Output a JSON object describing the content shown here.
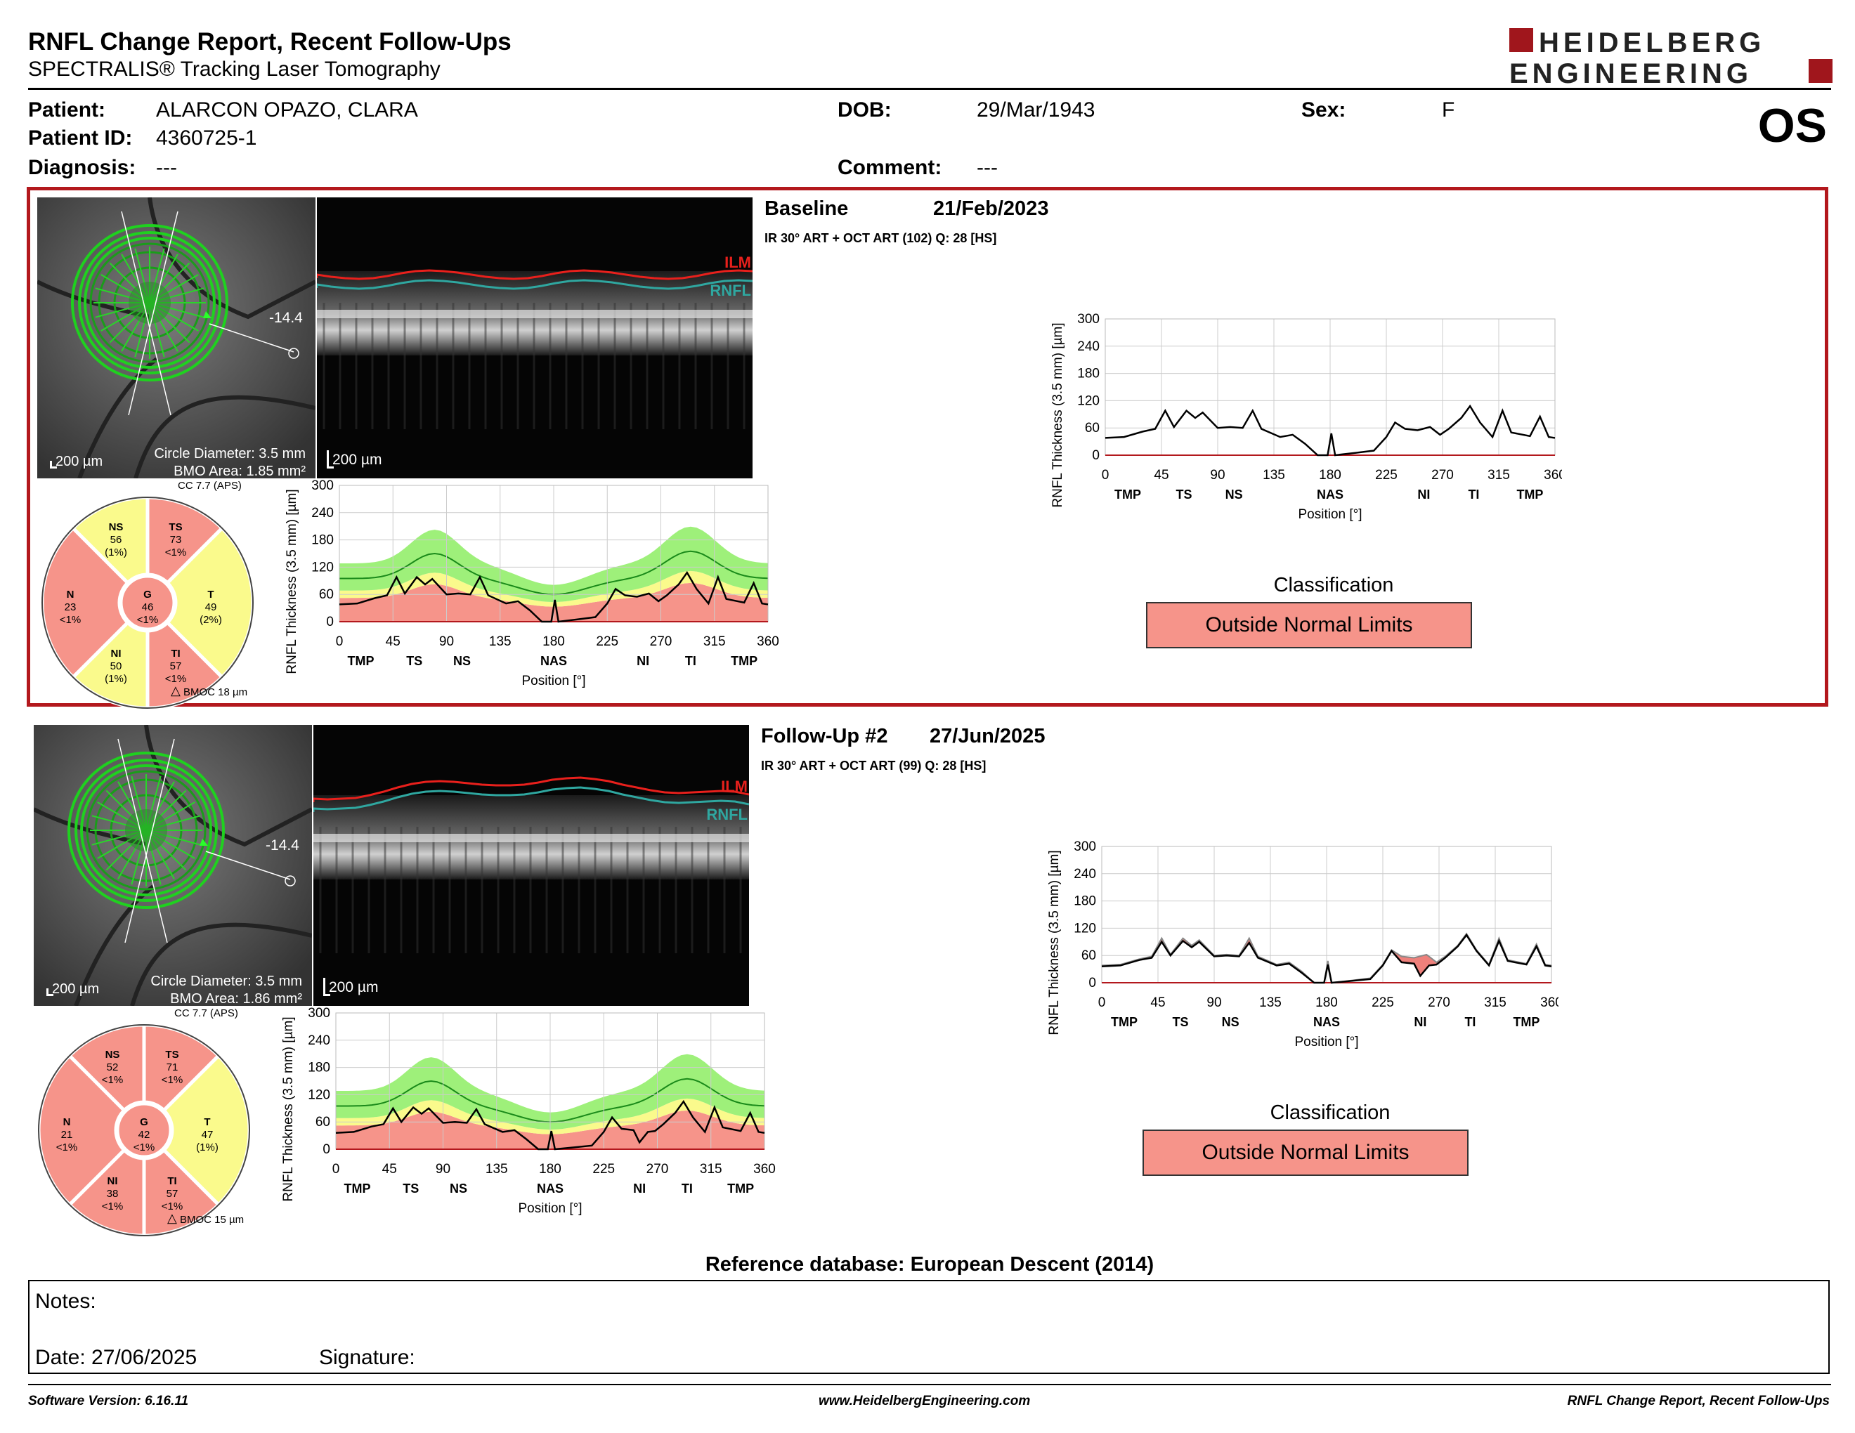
{
  "header": {
    "title": "RNFL Change Report, Recent Follow-Ups",
    "subtitle": "SPECTRALIS® Tracking Laser Tomography",
    "logo_line1": "HEIDELBERG",
    "logo_line2": "ENGINEERING",
    "eye": "OS"
  },
  "patient": {
    "patient_label": "Patient:",
    "patient_value": "ALARCON OPAZO, CLARA",
    "id_label": "Patient ID:",
    "id_value": "4360725-1",
    "diag_label": "Diagnosis:",
    "diag_value": "---",
    "dob_label": "DOB:",
    "dob_value": "29/Mar/1943",
    "comment_label": "Comment:",
    "comment_value": "---",
    "sex_label": "Sex:",
    "sex_value": "F"
  },
  "exams": [
    {
      "title": "Baseline",
      "date": "21/Feb/2023",
      "acq": "IR 30° ART + OCT ART (102) Q: 28 [HS]",
      "fundus": {
        "scale": "200 µm",
        "circle": "Circle Diameter: 3.5 mm",
        "bmo": "BMO Area: 1.85 mm²",
        "angle": "-14.4"
      },
      "bscan": {
        "scale": "200 µm",
        "ilm": "ILM",
        "rnfl": "RNFL"
      },
      "cc": "CC 7.7 (APS)",
      "bmoc": "BMOC 18 µm",
      "sectors": {
        "NS": {
          "label": "NS",
          "value": "56",
          "pct": "(1%)"
        },
        "TS": {
          "label": "TS",
          "value": "73",
          "pct": "<1%"
        },
        "T": {
          "label": "T",
          "value": "49",
          "pct": "(2%)"
        },
        "TI": {
          "label": "TI",
          "value": "57",
          "pct": "<1%"
        },
        "NI": {
          "label": "NI",
          "value": "50",
          "pct": "(1%)"
        },
        "N": {
          "label": "N",
          "value": "23",
          "pct": "<1%"
        },
        "G": {
          "label": "G",
          "value": "46",
          "pct": "<1%"
        }
      },
      "classification_title": "Classification",
      "classification": "Outside Normal Limits"
    },
    {
      "title": "Follow-Up #2",
      "date": "27/Jun/2025",
      "acq": "IR 30° ART + OCT ART (99) Q: 28 [HS]",
      "fundus": {
        "scale": "200 µm",
        "circle": "Circle Diameter: 3.5 mm",
        "bmo": "BMO Area: 1.86 mm²",
        "angle": "-14.4"
      },
      "bscan": {
        "scale": "200 µm",
        "ilm": "ILM",
        "rnfl": "RNFL"
      },
      "cc": "CC 7.7 (APS)",
      "bmoc": "BMOC 15 µm",
      "sectors": {
        "NS": {
          "label": "NS",
          "value": "52",
          "pct": "<1%"
        },
        "TS": {
          "label": "TS",
          "value": "71",
          "pct": "<1%"
        },
        "T": {
          "label": "T",
          "value": "47",
          "pct": "(1%)"
        },
        "TI": {
          "label": "TI",
          "value": "57",
          "pct": "<1%"
        },
        "NI": {
          "label": "NI",
          "value": "38",
          "pct": "<1%"
        },
        "N": {
          "label": "N",
          "value": "21",
          "pct": "<1%"
        },
        "G": {
          "label": "G",
          "value": "42",
          "pct": "<1%"
        }
      },
      "classification_title": "Classification",
      "classification": "Outside Normal Limits"
    }
  ],
  "chart_data": [
    {
      "type": "line",
      "ylabel": "RNFL Thickness (3.5 mm) [µm]",
      "xlabel": "Position [°]",
      "x_ticks": [
        0,
        45,
        90,
        135,
        180,
        225,
        270,
        315,
        360
      ],
      "y_ticks": [
        0,
        60,
        120,
        180,
        240,
        300
      ],
      "sector_ticks": [
        {
          "x": 18,
          "label": "TMP"
        },
        {
          "x": 63,
          "label": "TS"
        },
        {
          "x": 103,
          "label": "NS"
        },
        {
          "x": 180,
          "label": "NAS"
        },
        {
          "x": 255,
          "label": "NI"
        },
        {
          "x": 295,
          "label": "TI"
        },
        {
          "x": 340,
          "label": "TMP"
        }
      ],
      "ylim": [
        0,
        300
      ],
      "xlim": [
        0,
        360
      ],
      "series": [
        {
          "values": [
            [
              0,
              38
            ],
            [
              15,
              40
            ],
            [
              30,
              52
            ],
            [
              40,
              58
            ],
            [
              48,
              98
            ],
            [
              55,
              62
            ],
            [
              65,
              98
            ],
            [
              72,
              82
            ],
            [
              78,
              94
            ],
            [
              90,
              60
            ],
            [
              100,
              62
            ],
            [
              110,
              60
            ],
            [
              118,
              98
            ],
            [
              125,
              58
            ],
            [
              140,
              40
            ],
            [
              150,
              45
            ],
            [
              160,
              25
            ],
            [
              170,
              0
            ],
            [
              178,
              0
            ],
            [
              181,
              48
            ],
            [
              184,
              0
            ],
            [
              200,
              5
            ],
            [
              215,
              10
            ],
            [
              225,
              40
            ],
            [
              232,
              72
            ],
            [
              240,
              58
            ],
            [
              250,
              55
            ],
            [
              260,
              62
            ],
            [
              268,
              45
            ],
            [
              275,
              58
            ],
            [
              285,
              82
            ],
            [
              292,
              108
            ],
            [
              300,
              72
            ],
            [
              310,
              40
            ],
            [
              318,
              98
            ],
            [
              325,
              50
            ],
            [
              340,
              42
            ],
            [
              348,
              85
            ],
            [
              355,
              40
            ],
            [
              360,
              38
            ]
          ]
        }
      ]
    },
    {
      "type": "line",
      "ylabel": "RNFL Thickness (3.5 mm) [µm]",
      "xlabel": "Position [°]",
      "x_ticks": [
        0,
        45,
        90,
        135,
        180,
        225,
        270,
        315,
        360
      ],
      "y_ticks": [
        0,
        60,
        120,
        180,
        240,
        300
      ],
      "sector_ticks": [
        {
          "x": 18,
          "label": "TMP"
        },
        {
          "x": 63,
          "label": "TS"
        },
        {
          "x": 103,
          "label": "NS"
        },
        {
          "x": 180,
          "label": "NAS"
        },
        {
          "x": 255,
          "label": "NI"
        },
        {
          "x": 295,
          "label": "TI"
        },
        {
          "x": 340,
          "label": "TMP"
        }
      ],
      "ylim": [
        0,
        300
      ],
      "xlim": [
        0,
        360
      ],
      "series": [
        {
          "values": [
            [
              0,
              36
            ],
            [
              15,
              38
            ],
            [
              30,
              50
            ],
            [
              40,
              55
            ],
            [
              48,
              90
            ],
            [
              55,
              60
            ],
            [
              65,
              92
            ],
            [
              72,
              78
            ],
            [
              78,
              90
            ],
            [
              90,
              58
            ],
            [
              100,
              60
            ],
            [
              110,
              58
            ],
            [
              118,
              88
            ],
            [
              125,
              55
            ],
            [
              140,
              38
            ],
            [
              150,
              42
            ],
            [
              160,
              22
            ],
            [
              170,
              0
            ],
            [
              178,
              0
            ],
            [
              181,
              40
            ],
            [
              184,
              0
            ],
            [
              200,
              4
            ],
            [
              215,
              8
            ],
            [
              225,
              38
            ],
            [
              232,
              70
            ],
            [
              240,
              45
            ],
            [
              250,
              42
            ],
            [
              255,
              15
            ],
            [
              262,
              38
            ],
            [
              268,
              40
            ],
            [
              275,
              55
            ],
            [
              285,
              80
            ],
            [
              292,
              105
            ],
            [
              300,
              70
            ],
            [
              310,
              38
            ],
            [
              318,
              92
            ],
            [
              325,
              48
            ],
            [
              340,
              40
            ],
            [
              348,
              80
            ],
            [
              355,
              38
            ],
            [
              360,
              36
            ]
          ]
        }
      ]
    }
  ],
  "reference": "Reference database: European Descent (2014)",
  "notes": {
    "notes_label": "Notes:",
    "date_label": "Date: 27/06/2025",
    "signature_label": "Signature:"
  },
  "footer": {
    "left": "Software Version: 6.16.11",
    "center": "www.HeidelbergEngineering.com",
    "right": "RNFL Change Report, Recent Follow-Ups"
  },
  "colors": {
    "frame_red": "#b3181d",
    "abnormal": "#f6948a",
    "borderline": "#fafa8c",
    "normal": "#9ef07a",
    "ilm": "#e8201c",
    "rnfl": "#2fa7a0"
  }
}
